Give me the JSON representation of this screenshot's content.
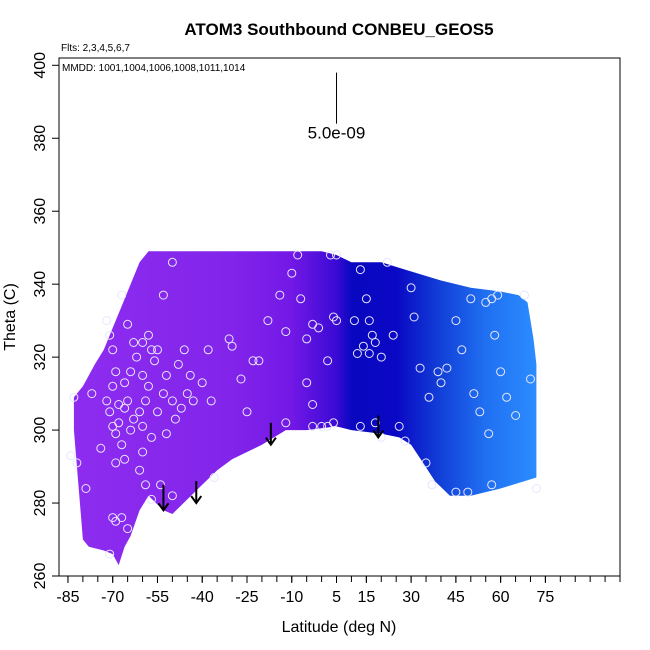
{
  "chart_data": {
    "type": "scatter",
    "title": "ATOM3 Southbound CONBEU_GEOS5",
    "xlabel": "Latitude (deg N)",
    "ylabel": "Theta (C)",
    "xlim": [
      -88,
      100
    ],
    "ylim": [
      260,
      402
    ],
    "x_ticks": [
      -85,
      -70,
      -55,
      -40,
      -25,
      -10,
      5,
      15,
      30,
      45,
      60,
      75
    ],
    "x_minor_step": 5,
    "y_ticks": [
      260,
      280,
      300,
      320,
      340,
      360,
      380,
      400
    ],
    "notes": {
      "flights": "Flts: 2,3,4,5,6,7",
      "dates": "MMDD: 1001,1004,1006,1008,1011,1014"
    },
    "scale_bar": {
      "label": "5.0e-09",
      "x": 5,
      "y_top": 398,
      "y_bottom": 384
    },
    "colors": {
      "purple": "#8e2df0",
      "violet": "#7318e6",
      "navy": "#0a07c0",
      "blue": "#1f55e8",
      "light_blue": "#2b8cff",
      "marker_edge": "#e6e6ff",
      "arrow": "#000000"
    },
    "field_region": {
      "top_boundary": [
        [
          -83,
          309
        ],
        [
          -80,
          312
        ],
        [
          -76,
          318
        ],
        [
          -73,
          322
        ],
        [
          -70,
          328
        ],
        [
          -67,
          334
        ],
        [
          -64,
          340
        ],
        [
          -61,
          346
        ],
        [
          -58,
          349
        ],
        [
          -30,
          349
        ],
        [
          -10,
          349
        ],
        [
          0,
          349
        ],
        [
          5,
          348
        ],
        [
          10,
          346
        ],
        [
          20,
          346
        ],
        [
          28,
          344
        ],
        [
          40,
          341
        ],
        [
          50,
          339
        ],
        [
          60,
          338
        ],
        [
          66,
          337
        ],
        [
          69,
          335
        ],
        [
          70,
          330
        ],
        [
          71,
          325
        ],
        [
          72,
          318
        ],
        [
          72,
          300
        ],
        [
          72,
          287
        ]
      ],
      "bottom_boundary": [
        [
          72,
          287
        ],
        [
          60,
          284
        ],
        [
          50,
          282
        ],
        [
          43,
          282
        ],
        [
          38,
          286
        ],
        [
          34,
          291
        ],
        [
          30,
          296
        ],
        [
          26,
          298
        ],
        [
          20,
          299
        ],
        [
          10,
          300
        ],
        [
          5,
          301
        ],
        [
          -5,
          300
        ],
        [
          -12,
          300
        ],
        [
          -20,
          296
        ],
        [
          -25,
          294
        ],
        [
          -30,
          292
        ],
        [
          -35,
          289
        ],
        [
          -40,
          285
        ],
        [
          -45,
          281
        ],
        [
          -50,
          277
        ],
        [
          -53,
          278
        ],
        [
          -58,
          282
        ],
        [
          -61,
          278
        ],
        [
          -64,
          271
        ],
        [
          -66,
          268
        ],
        [
          -68,
          263
        ],
        [
          -70,
          266
        ],
        [
          -73,
          267
        ],
        [
          -78,
          268
        ],
        [
          -80,
          270
        ],
        [
          -81,
          280
        ],
        [
          -82,
          290
        ],
        [
          -83,
          300
        ]
      ],
      "gradient_stops": [
        {
          "lat": -85,
          "color": "#8e2df0"
        },
        {
          "lat": -30,
          "color": "#8224ea"
        },
        {
          "lat": -10,
          "color": "#7318e6"
        },
        {
          "lat": 5,
          "color": "#3a0ad4"
        },
        {
          "lat": 10,
          "color": "#0a07c0"
        },
        {
          "lat": 25,
          "color": "#0a08c4"
        },
        {
          "lat": 40,
          "color": "#1240d8"
        },
        {
          "lat": 55,
          "color": "#2070f2"
        },
        {
          "lat": 72,
          "color": "#2b8cff"
        }
      ]
    },
    "arrows": [
      {
        "x": -53,
        "y_top": 285,
        "y_bottom": 278
      },
      {
        "x": -42,
        "y_top": 286,
        "y_bottom": 280
      },
      {
        "x": -17,
        "y_top": 302,
        "y_bottom": 296
      },
      {
        "x": 19,
        "y_top": 304,
        "y_bottom": 298
      }
    ],
    "points": [
      [
        -83,
        309
      ],
      [
        -84,
        293
      ],
      [
        -82,
        291
      ],
      [
        -79,
        284
      ],
      [
        -77,
        310
      ],
      [
        -74,
        295
      ],
      [
        -72,
        308
      ],
      [
        -71,
        305
      ],
      [
        -70,
        301
      ],
      [
        -69,
        299
      ],
      [
        -68,
        302
      ],
      [
        -67,
        296
      ],
      [
        -69,
        291
      ],
      [
        -66,
        292
      ],
      [
        -70,
        276
      ],
      [
        -69,
        275
      ],
      [
        -67,
        276
      ],
      [
        -65,
        273
      ],
      [
        -71,
        266
      ],
      [
        -72,
        330
      ],
      [
        -71,
        326
      ],
      [
        -70,
        322
      ],
      [
        -69,
        316
      ],
      [
        -70,
        312
      ],
      [
        -68,
        307
      ],
      [
        -66,
        306
      ],
      [
        -64,
        300
      ],
      [
        -63,
        303
      ],
      [
        -65,
        308
      ],
      [
        -66,
        313
      ],
      [
        -64,
        316
      ],
      [
        -62,
        320
      ],
      [
        -63,
        324
      ],
      [
        -65,
        329
      ],
      [
        -67,
        337
      ],
      [
        -60,
        324
      ],
      [
        -58,
        326
      ],
      [
        -57,
        322
      ],
      [
        -56,
        319
      ],
      [
        -60,
        315
      ],
      [
        -58,
        312
      ],
      [
        -59,
        308
      ],
      [
        -61,
        305
      ],
      [
        -60,
        301
      ],
      [
        -57,
        298
      ],
      [
        -60,
        294
      ],
      [
        -61,
        289
      ],
      [
        -59,
        285
      ],
      [
        -57,
        281
      ],
      [
        -54,
        285
      ],
      [
        -50,
        282
      ],
      [
        -52,
        299
      ],
      [
        -55,
        305
      ],
      [
        -53,
        310
      ],
      [
        -52,
        315
      ],
      [
        -55,
        322
      ],
      [
        -53,
        337
      ],
      [
        -50,
        308
      ],
      [
        -48,
        318
      ],
      [
        -46,
        322
      ],
      [
        -44,
        315
      ],
      [
        -45,
        310
      ],
      [
        -49,
        303
      ],
      [
        -47,
        306
      ],
      [
        -50,
        346
      ],
      [
        -43,
        308
      ],
      [
        -40,
        313
      ],
      [
        -38,
        322
      ],
      [
        -37,
        308
      ],
      [
        -36,
        287
      ],
      [
        -31,
        325
      ],
      [
        -30,
        323
      ],
      [
        -27,
        314
      ],
      [
        -25,
        305
      ],
      [
        -23,
        319
      ],
      [
        -21,
        319
      ],
      [
        -18,
        330
      ],
      [
        -14,
        337
      ],
      [
        -12,
        327
      ],
      [
        -10,
        343
      ],
      [
        -8,
        348
      ],
      [
        -5,
        325
      ],
      [
        -3,
        329
      ],
      [
        -1,
        328
      ],
      [
        -3,
        307
      ],
      [
        -5,
        313
      ],
      [
        -7,
        336
      ],
      [
        3,
        348
      ],
      [
        5,
        348
      ],
      [
        4,
        331
      ],
      [
        5,
        330
      ],
      [
        2,
        319
      ],
      [
        2,
        301
      ],
      [
        0,
        301
      ],
      [
        -3,
        301
      ],
      [
        4,
        302
      ],
      [
        -12,
        302
      ],
      [
        11,
        330
      ],
      [
        13,
        344
      ],
      [
        15,
        336
      ],
      [
        16,
        330
      ],
      [
        17,
        326
      ],
      [
        14,
        323
      ],
      [
        12,
        321
      ],
      [
        16,
        321
      ],
      [
        18,
        324
      ],
      [
        20,
        320
      ],
      [
        22,
        346
      ],
      [
        13,
        301
      ],
      [
        18,
        302
      ],
      [
        20,
        298
      ],
      [
        24,
        326
      ],
      [
        26,
        301
      ],
      [
        28,
        297
      ],
      [
        30,
        339
      ],
      [
        31,
        331
      ],
      [
        33,
        317
      ],
      [
        35,
        291
      ],
      [
        37,
        285
      ],
      [
        36,
        309
      ],
      [
        39,
        316
      ],
      [
        40,
        313
      ],
      [
        42,
        317
      ],
      [
        45,
        330
      ],
      [
        47,
        322
      ],
      [
        50,
        336
      ],
      [
        51,
        310
      ],
      [
        53,
        305
      ],
      [
        55,
        335
      ],
      [
        57,
        336
      ],
      [
        59,
        337
      ],
      [
        58,
        326
      ],
      [
        60,
        316
      ],
      [
        62,
        309
      ],
      [
        65,
        304
      ],
      [
        68,
        337
      ],
      [
        70,
        314
      ],
      [
        72,
        284
      ],
      [
        45,
        283
      ],
      [
        49,
        283
      ],
      [
        57,
        285
      ],
      [
        56,
        299
      ]
    ]
  }
}
